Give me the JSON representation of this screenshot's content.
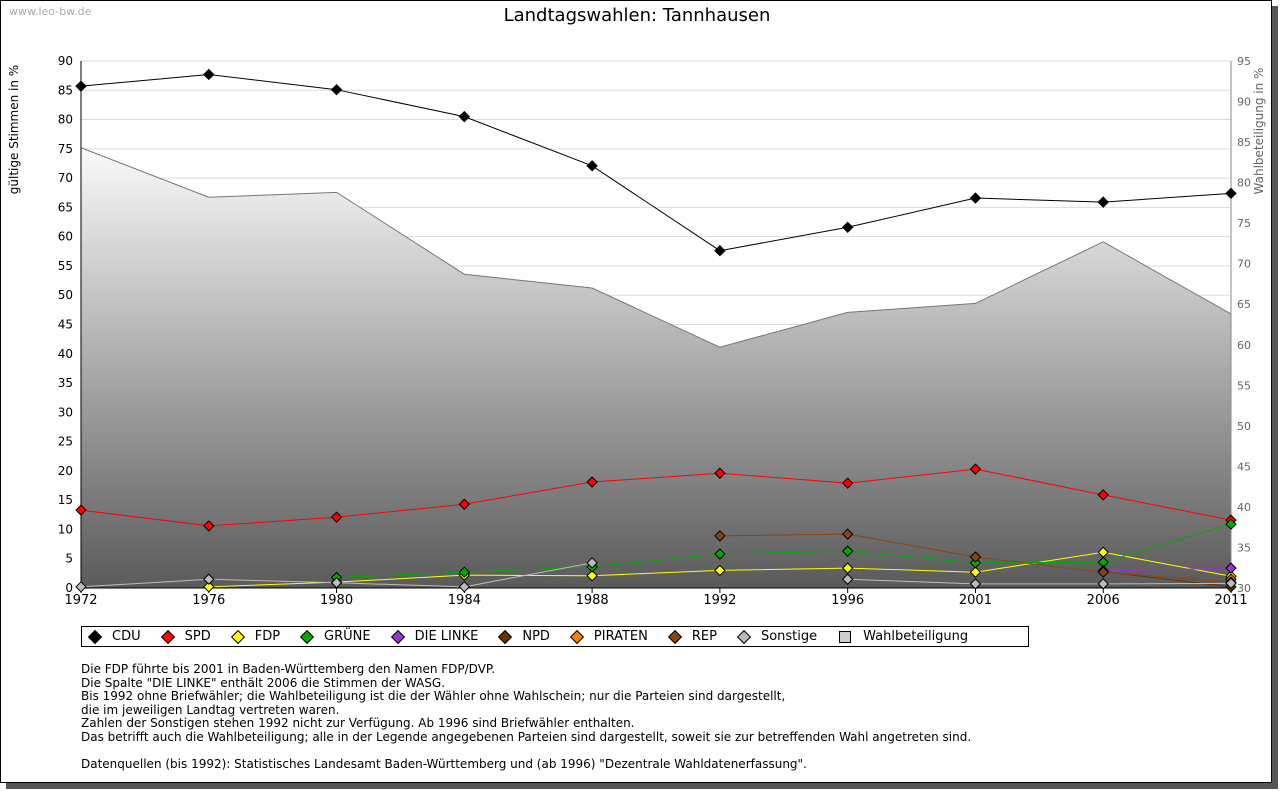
{
  "watermark": "www.leo-bw.de",
  "chart_data": {
    "type": "line",
    "title": "Landtagswahlen: Tannhausen",
    "ylabel": "gültige Stimmen in %",
    "y2label": "Wahlbeteiligung in %",
    "ylim": [
      0,
      90
    ],
    "y2lim": [
      30,
      95
    ],
    "yticks": [
      0,
      5,
      10,
      15,
      20,
      25,
      30,
      35,
      40,
      45,
      50,
      55,
      60,
      65,
      70,
      75,
      80,
      85,
      90
    ],
    "y2ticks": [
      30,
      35,
      40,
      45,
      50,
      55,
      60,
      65,
      70,
      75,
      80,
      85,
      90,
      95
    ],
    "x": [
      "1972",
      "1976",
      "1980",
      "1984",
      "1988",
      "1992",
      "1996",
      "2001",
      "2006",
      "2011"
    ],
    "turnout": {
      "name": "Wahlbeteiligung",
      "color": "#cccccc",
      "values": [
        84.3,
        78.2,
        78.8,
        68.7,
        67.0,
        59.7,
        64.0,
        65.1,
        72.7,
        63.8
      ]
    },
    "series": [
      {
        "name": "CDU",
        "color": "#000000",
        "values": [
          85.7,
          87.7,
          85.1,
          80.5,
          72.1,
          57.6,
          61.6,
          66.6,
          65.9,
          67.4
        ]
      },
      {
        "name": "SPD",
        "color": "#ff0000",
        "values": [
          13.3,
          10.6,
          12.1,
          14.3,
          18.1,
          19.6,
          17.9,
          20.3,
          15.9,
          11.6
        ]
      },
      {
        "name": "FDP",
        "color": "#ffff00",
        "values": [
          null,
          0.2,
          1.0,
          2.2,
          2.1,
          3.0,
          3.4,
          2.7,
          6.1,
          2.0
        ]
      },
      {
        "name": "GRÜNE",
        "color": "#00aa00",
        "values": [
          null,
          null,
          1.8,
          2.7,
          3.6,
          5.8,
          6.3,
          4.3,
          4.4,
          10.9
        ]
      },
      {
        "name": "DIE LINKE",
        "color": "#9933cc",
        "values": [
          null,
          null,
          null,
          null,
          null,
          null,
          null,
          null,
          2.9,
          3.4
        ]
      },
      {
        "name": "NPD",
        "color": "#663300",
        "values": [
          null,
          null,
          null,
          null,
          null,
          null,
          null,
          null,
          2.8,
          0.2
        ]
      },
      {
        "name": "PIRATEN",
        "color": "#ff8000",
        "values": [
          null,
          null,
          null,
          null,
          null,
          null,
          null,
          null,
          null,
          1.5
        ]
      },
      {
        "name": "REP",
        "color": "#8b4513",
        "values": [
          null,
          null,
          null,
          null,
          null,
          8.9,
          9.2,
          5.3,
          2.7,
          1.0
        ]
      },
      {
        "name": "Sonstige",
        "color": "#bbbbbb",
        "values": [
          0.2,
          1.5,
          0.9,
          0.2,
          4.3,
          null,
          1.5,
          0.7,
          0.7,
          0.8
        ]
      }
    ],
    "legend": "bottom"
  },
  "notes": [
    "Die FDP führte bis 2001 in Baden-Württemberg den Namen FDP/DVP.",
    "Die Spalte \"DIE LINKE\" enthält 2006 die Stimmen der WASG.",
    "Bis 1992 ohne Briefwähler; die Wahlbeteiligung ist die der Wähler ohne Wahlschein; nur die Parteien sind dargestellt,",
    "die im jeweiligen Landtag vertreten waren.",
    "Zahlen der Sonstigen stehen 1992 nicht zur Verfügung. Ab 1996 sind Briefwähler enthalten.",
    "Das betrifft auch die Wahlbeteiligung; alle in der Legende angegebenen Parteien sind dargestellt, soweit sie zur betreffenden Wahl angetreten sind.",
    "",
    "Datenquellen (bis 1992): Statistisches Landesamt Baden-Württemberg und (ab 1996) \"Dezentrale Wahldatenerfassung\"."
  ]
}
